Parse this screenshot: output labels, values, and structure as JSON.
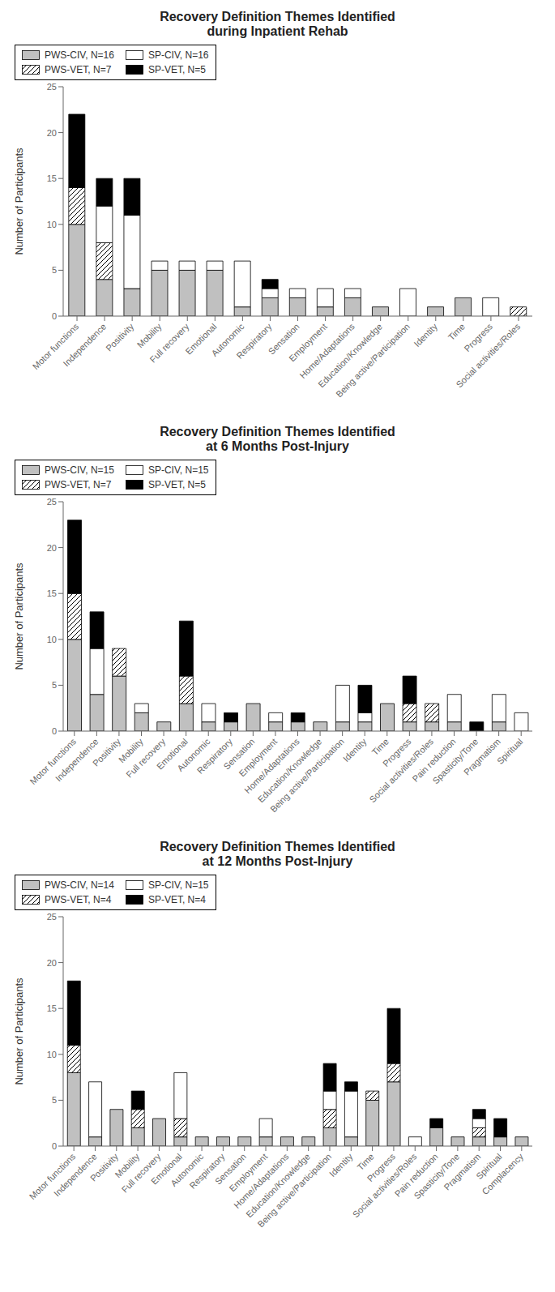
{
  "chart_data": [
    {
      "type": "bar",
      "title": "Recovery Definition Themes Identified\nduring Inpatient Rehab",
      "stacked": true,
      "legend": "upper right",
      "grid": false,
      "ylabel": "Number of Participants",
      "ylim": [
        0,
        25
      ],
      "yticks": [
        0,
        5,
        10,
        15,
        20,
        25
      ],
      "categories": [
        "Motor functions",
        "Independence",
        "Positivity",
        "Mobility",
        "Full recovery",
        "Emotional",
        "Autonomic",
        "Respiratory",
        "Sensation",
        "Employment",
        "Home/Adaptations",
        "Education/Knowledge",
        "Being active/Participation",
        "Identity",
        "Time",
        "Progress",
        "Social activities/Roles"
      ],
      "series": [
        {
          "name": "PWS-CIV, N=16",
          "color": "#c0c0c0",
          "values": [
            10,
            4,
            3,
            5,
            5,
            5,
            1,
            2,
            2,
            1,
            2,
            1,
            0,
            1,
            2,
            0,
            0
          ]
        },
        {
          "name": "PWS-VET, N=7",
          "color": "#ffffff",
          "values": [
            4,
            4,
            0,
            0,
            0,
            0,
            0,
            0,
            0,
            0,
            0,
            0,
            0,
            0,
            0,
            0,
            1
          ]
        },
        {
          "name": "SP-CIV, N=16",
          "color": "#ffffff",
          "values": [
            0,
            4,
            8,
            1,
            1,
            1,
            5,
            1,
            1,
            2,
            1,
            0,
            3,
            0,
            0,
            2,
            0
          ]
        },
        {
          "name": "SP-VET, N=5",
          "color": "#000000",
          "values": [
            8,
            3,
            4,
            0,
            0,
            0,
            0,
            1,
            0,
            0,
            0,
            0,
            0,
            0,
            0,
            0,
            0
          ]
        }
      ]
    },
    {
      "type": "bar",
      "title": "Recovery Definition Themes Identified\nat 6 Months Post-Injury",
      "stacked": true,
      "legend": "upper right",
      "grid": false,
      "ylabel": "Number of Participants",
      "ylim": [
        0,
        25
      ],
      "yticks": [
        0,
        5,
        10,
        15,
        20,
        25
      ],
      "categories": [
        "Motor functions",
        "Independence",
        "Positivity",
        "Mobility",
        "Full recovery",
        "Emotional",
        "Autonomic",
        "Respiratory",
        "Sensation",
        "Employment",
        "Home/Adaptations",
        "Education/Knowledge",
        "Being active/Participation",
        "Identity",
        "Time",
        "Progress",
        "Social activities/Roles",
        "Pain reduction",
        "Spasticity/Tone",
        "Pragmatism",
        "Spiritual"
      ],
      "series": [
        {
          "name": "PWS-CIV, N=15",
          "color": "#c0c0c0",
          "values": [
            10,
            4,
            6,
            2,
            1,
            3,
            1,
            1,
            3,
            1,
            1,
            1,
            1,
            1,
            3,
            1,
            1,
            1,
            0,
            1,
            0
          ]
        },
        {
          "name": "PWS-VET, N=7",
          "color": "#ffffff",
          "values": [
            5,
            0,
            3,
            0,
            0,
            3,
            0,
            0,
            0,
            0,
            0,
            0,
            0,
            0,
            0,
            2,
            2,
            0,
            0,
            0,
            0
          ]
        },
        {
          "name": "SP-CIV, N=15",
          "color": "#ffffff",
          "values": [
            0,
            5,
            0,
            1,
            0,
            0,
            2,
            0,
            0,
            1,
            0,
            0,
            4,
            1,
            0,
            0,
            0,
            3,
            0,
            3,
            2
          ]
        },
        {
          "name": "SP-VET, N=5",
          "color": "#000000",
          "values": [
            8,
            4,
            0,
            0,
            0,
            6,
            0,
            1,
            0,
            0,
            1,
            0,
            0,
            3,
            0,
            3,
            0,
            0,
            1,
            0,
            0
          ]
        }
      ]
    },
    {
      "type": "bar",
      "title": "Recovery Definition Themes Identified\nat 12 Months Post-Injury",
      "stacked": true,
      "legend": "upper right",
      "grid": false,
      "ylabel": "Number of Participants",
      "ylim": [
        0,
        25
      ],
      "yticks": [
        0,
        5,
        10,
        15,
        20,
        25
      ],
      "categories": [
        "Motor functions",
        "Independence",
        "Positivity",
        "Mobility",
        "Full recovery",
        "Emotional",
        "Autonomic",
        "Respiratory",
        "Sensation",
        "Employment",
        "Home/Adaptations",
        "Education/Knowledge",
        "Being active/Participation",
        "Identity",
        "Time",
        "Progress",
        "Social activities/Roles",
        "Pain reduction",
        "Spasticity/Tone",
        "Pragmatism",
        "Spiritual",
        "Complacency"
      ],
      "series": [
        {
          "name": "PWS-CIV, N=14",
          "color": "#c0c0c0",
          "values": [
            8,
            1,
            4,
            2,
            3,
            1,
            1,
            1,
            1,
            1,
            1,
            1,
            2,
            1,
            5,
            7,
            0,
            2,
            1,
            1,
            1,
            1
          ]
        },
        {
          "name": "PWS-VET, N=4",
          "color": "#ffffff",
          "values": [
            3,
            0,
            0,
            2,
            0,
            2,
            0,
            0,
            0,
            0,
            0,
            0,
            2,
            0,
            1,
            2,
            0,
            0,
            0,
            1,
            0,
            0
          ]
        },
        {
          "name": "SP-CIV, N=15",
          "color": "#ffffff",
          "values": [
            0,
            6,
            0,
            0,
            0,
            5,
            0,
            0,
            0,
            2,
            0,
            0,
            2,
            5,
            0,
            0,
            1,
            0,
            0,
            1,
            0,
            0
          ]
        },
        {
          "name": "SP-VET, N=4",
          "color": "#000000",
          "values": [
            7,
            0,
            0,
            2,
            0,
            0,
            0,
            0,
            0,
            0,
            0,
            0,
            3,
            1,
            0,
            6,
            0,
            1,
            0,
            1,
            2,
            0
          ]
        }
      ]
    }
  ]
}
